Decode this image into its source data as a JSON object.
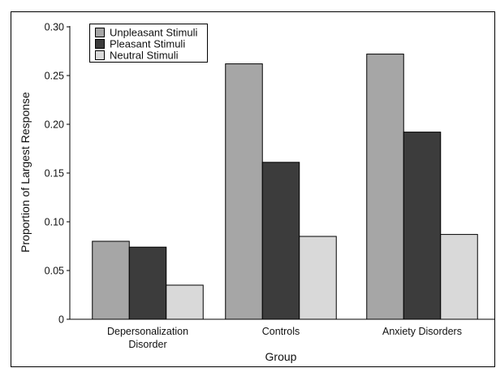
{
  "chart_data": {
    "type": "bar",
    "title": "",
    "xlabel": "Group",
    "ylabel": "Proportion of Largest Response",
    "categories": [
      [
        "Depersonalization",
        "Disorder"
      ],
      [
        "Controls"
      ],
      [
        "Anxiety Disorders"
      ]
    ],
    "series": [
      {
        "name": "Unpleasant Stimuli",
        "color": "#a6a6a6",
        "values": [
          0.08,
          0.262,
          0.272
        ]
      },
      {
        "name": "Pleasant Stimuli",
        "color": "#3c3c3c",
        "values": [
          0.074,
          0.161,
          0.192
        ]
      },
      {
        "name": "Neutral Stimuli",
        "color": "#d9d9d9",
        "values": [
          0.035,
          0.085,
          0.087
        ]
      }
    ],
    "ylim": [
      0,
      0.3
    ],
    "yticks": [
      0,
      0.05,
      0.1,
      0.15,
      0.2,
      0.25,
      0.3
    ],
    "ytick_labels": [
      "0",
      "0.05",
      "0.10",
      "0.15",
      "0.20",
      "0.25",
      "0.30"
    ],
    "grid": false,
    "legend_position": "top-left"
  }
}
